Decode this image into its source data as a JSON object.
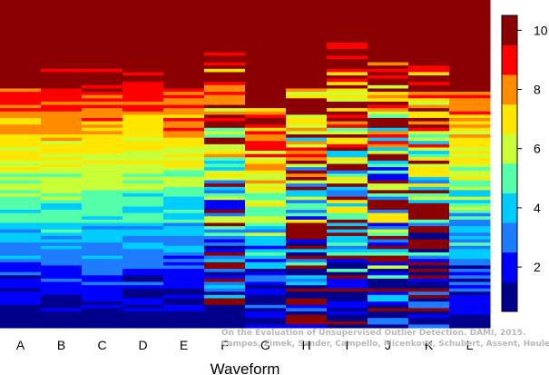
{
  "chart_data": {
    "type": "heatmap",
    "xlabel": "Waveform",
    "title": "",
    "categories": [
      "A",
      "B",
      "C",
      "D",
      "E",
      "F",
      "G",
      "H",
      "I",
      "J",
      "K",
      "L"
    ],
    "colorbar": {
      "ticks": [
        2,
        4,
        6,
        8,
        10
      ],
      "range": [
        0.5,
        10.5
      ],
      "colors": [
        "#00008b",
        "#0000ff",
        "#1e7cff",
        "#00ccff",
        "#55ffaa",
        "#c8ff37",
        "#ffe600",
        "#ff8c00",
        "#ff0000",
        "#8b0000"
      ]
    },
    "rows": 100,
    "columns_description": "rank per outlier (row) per method (column), 1 = best, 10 = worst"
  },
  "watermark": {
    "line1": "On the Evaluation of Unsupervised Outlier Detection. DAMI, 2015.",
    "line2": "Campos, Zimek, Sander, Campello, Micenkova, Schubert, Assent, Houle"
  }
}
